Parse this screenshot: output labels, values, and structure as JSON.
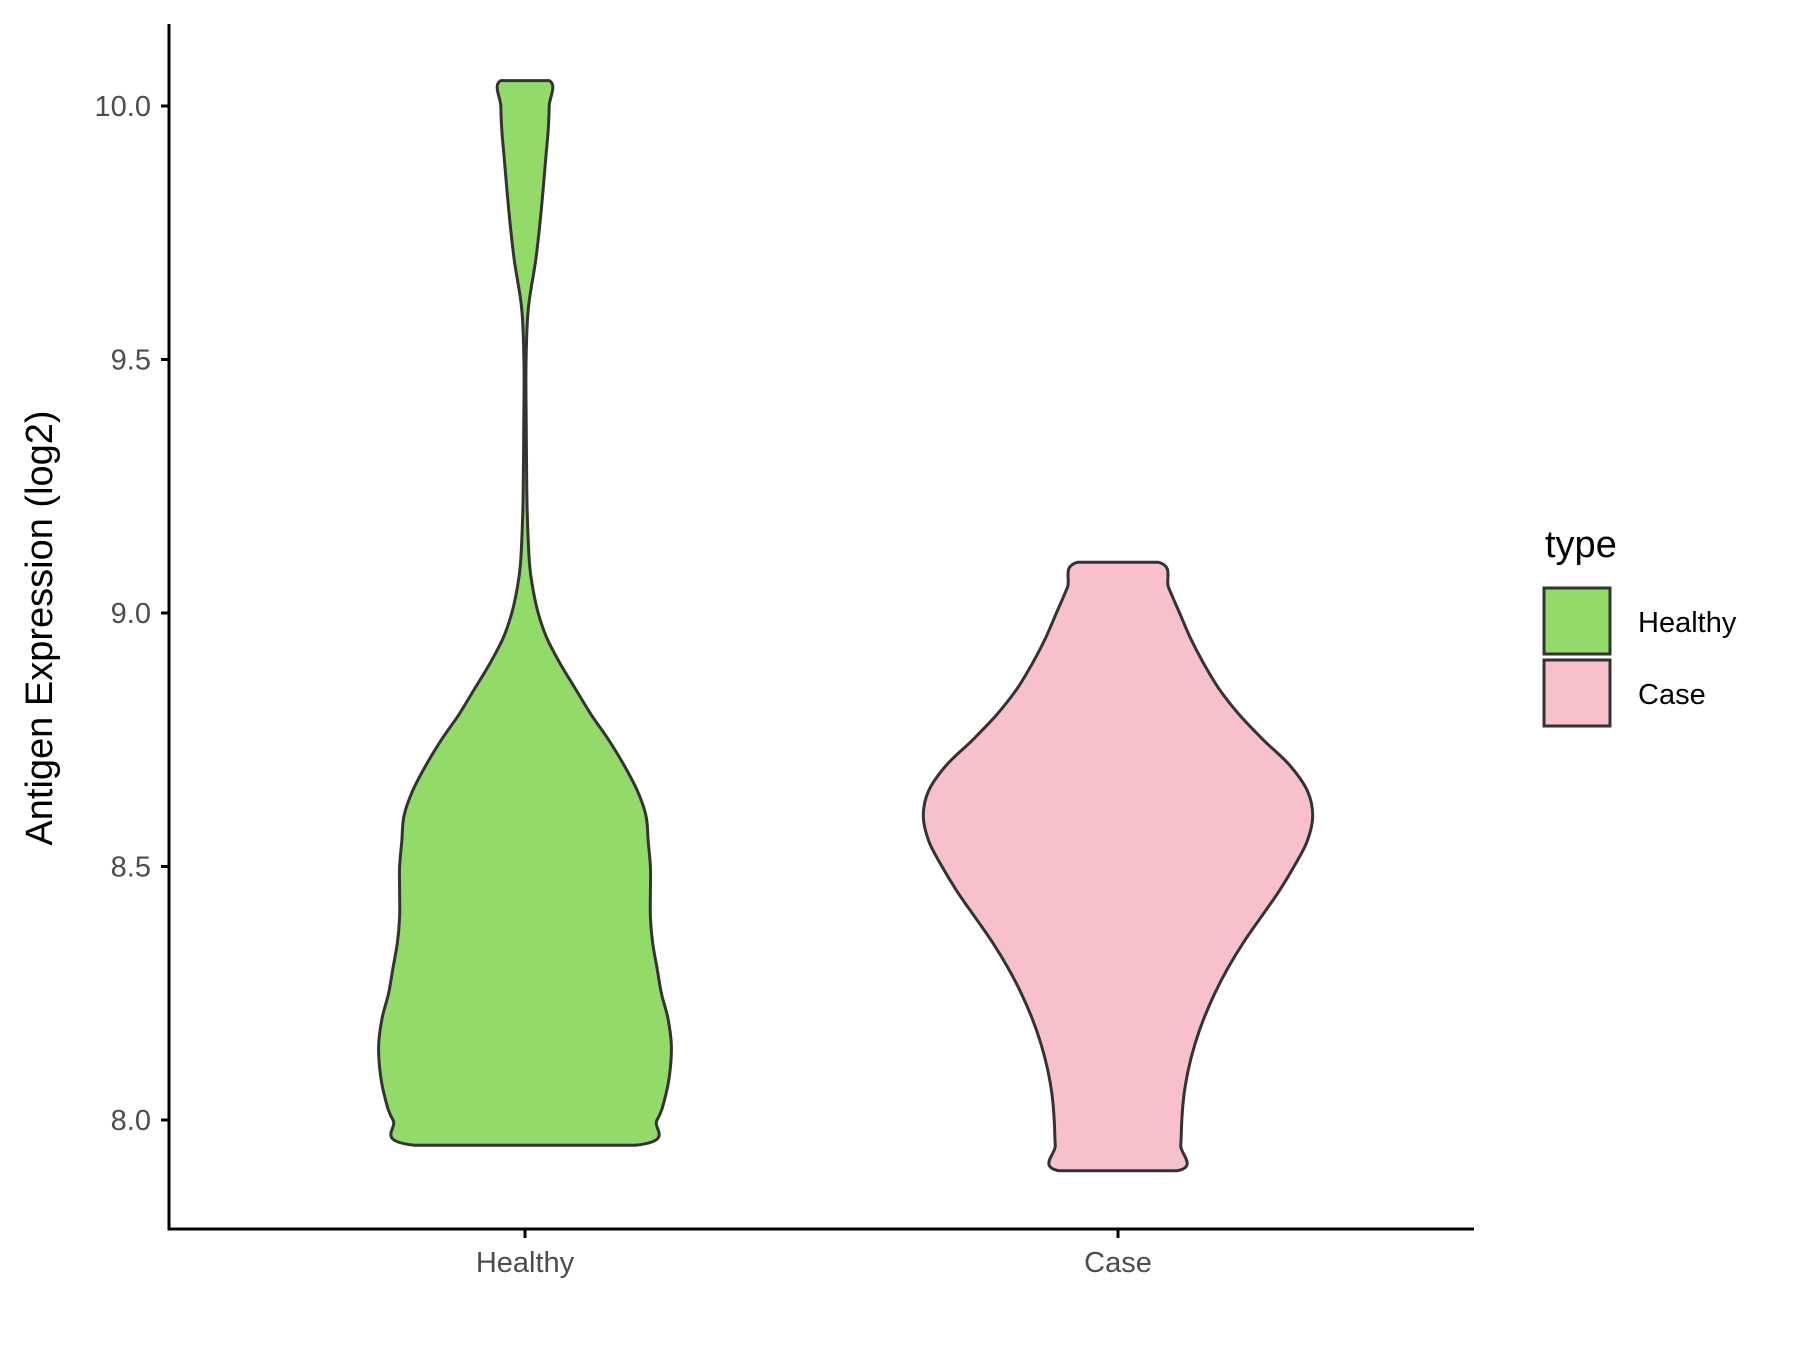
{
  "chart_data": {
    "type": "violin",
    "title": "",
    "xlabel": "",
    "ylabel": "Antigen Expression (log2)",
    "ylim": [
      7.79,
      10.16
    ],
    "yticks": [
      8.0,
      8.5,
      9.0,
      9.5,
      10.0
    ],
    "ytick_labels": [
      "8.0",
      "8.5",
      "9.0",
      "9.5",
      "10.0"
    ],
    "categories": [
      "Healthy",
      "Case"
    ],
    "grid": false,
    "legend": {
      "title": "type",
      "position": "right",
      "entries": [
        "Healthy",
        "Case"
      ]
    },
    "series": [
      {
        "name": "Healthy",
        "color": "#93DB69",
        "min": 7.95,
        "max": 10.05,
        "density_profile": [
          [
            7.95,
            0.5
          ],
          [
            8.0,
            0.6
          ],
          [
            8.05,
            0.64
          ],
          [
            8.1,
            0.66
          ],
          [
            8.15,
            0.665
          ],
          [
            8.2,
            0.65
          ],
          [
            8.25,
            0.62
          ],
          [
            8.3,
            0.6
          ],
          [
            8.35,
            0.58
          ],
          [
            8.4,
            0.57
          ],
          [
            8.45,
            0.57
          ],
          [
            8.5,
            0.57
          ],
          [
            8.55,
            0.56
          ],
          [
            8.6,
            0.55
          ],
          [
            8.65,
            0.51
          ],
          [
            8.7,
            0.45
          ],
          [
            8.75,
            0.38
          ],
          [
            8.8,
            0.3
          ],
          [
            8.85,
            0.23
          ],
          [
            8.9,
            0.16
          ],
          [
            8.95,
            0.1
          ],
          [
            9.0,
            0.06
          ],
          [
            9.05,
            0.035
          ],
          [
            9.1,
            0.02
          ],
          [
            9.2,
            0.01
          ],
          [
            9.3,
            0.007
          ],
          [
            9.4,
            0.005
          ],
          [
            9.5,
            0.005
          ],
          [
            9.6,
            0.015
          ],
          [
            9.7,
            0.05
          ],
          [
            9.8,
            0.075
          ],
          [
            9.9,
            0.095
          ],
          [
            9.95,
            0.105
          ],
          [
            10.0,
            0.11
          ],
          [
            10.05,
            0.11
          ]
        ]
      },
      {
        "name": "Case",
        "color": "#F7C0CA",
        "min": 7.9,
        "max": 9.1,
        "density_profile": [
          [
            7.9,
            0.27
          ],
          [
            7.95,
            0.285
          ],
          [
            8.0,
            0.29
          ],
          [
            8.05,
            0.3
          ],
          [
            8.1,
            0.32
          ],
          [
            8.15,
            0.35
          ],
          [
            8.2,
            0.39
          ],
          [
            8.25,
            0.44
          ],
          [
            8.3,
            0.5
          ],
          [
            8.35,
            0.57
          ],
          [
            8.4,
            0.65
          ],
          [
            8.45,
            0.73
          ],
          [
            8.5,
            0.8
          ],
          [
            8.55,
            0.86
          ],
          [
            8.6,
            0.885
          ],
          [
            8.65,
            0.86
          ],
          [
            8.7,
            0.78
          ],
          [
            8.75,
            0.66
          ],
          [
            8.8,
            0.55
          ],
          [
            8.85,
            0.46
          ],
          [
            8.9,
            0.39
          ],
          [
            8.95,
            0.33
          ],
          [
            9.0,
            0.28
          ],
          [
            9.05,
            0.23
          ],
          [
            9.1,
            0.185
          ]
        ]
      }
    ]
  }
}
